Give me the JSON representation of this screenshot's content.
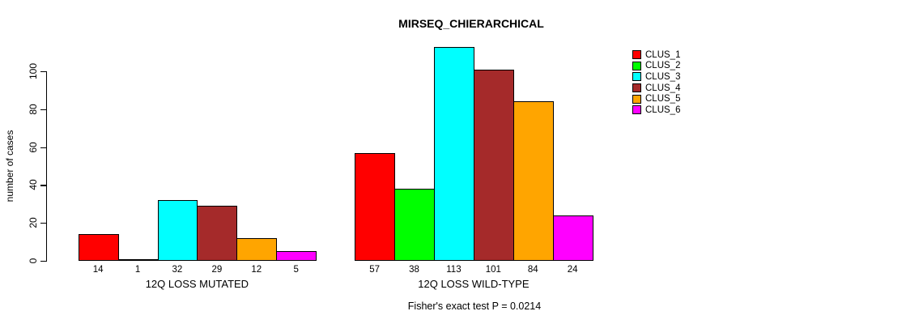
{
  "chart_data": {
    "type": "bar",
    "title": "MIRSEQ_CHIERARCHICAL",
    "ylabel": "number of cases",
    "xlabel": "",
    "ylim": [
      0,
      100
    ],
    "yticks": [
      0,
      20,
      40,
      60,
      80,
      100
    ],
    "grid": false,
    "legend_position": "right",
    "categories": [
      "12Q LOSS MUTATED",
      "12Q LOSS WILD-TYPE"
    ],
    "series": [
      {
        "name": "CLUS_1",
        "color": "#FF0000",
        "values": [
          14,
          57
        ]
      },
      {
        "name": "CLUS_2",
        "color": "#00FF00",
        "values": [
          1,
          38
        ]
      },
      {
        "name": "CLUS_3",
        "color": "#00FFFF",
        "values": [
          32,
          113
        ]
      },
      {
        "name": "CLUS_4",
        "color": "#A52A2A",
        "values": [
          29,
          101
        ]
      },
      {
        "name": "CLUS_5",
        "color": "#FFA500",
        "values": [
          12,
          84
        ]
      },
      {
        "name": "CLUS_6",
        "color": "#FF00FF",
        "values": [
          5,
          24
        ]
      }
    ],
    "bar_value_labels": [
      [
        14,
        1,
        32,
        29,
        12,
        5
      ],
      [
        57,
        38,
        113,
        101,
        84,
        24
      ]
    ],
    "annotation": "Fisher's exact test P = 0.0214"
  }
}
